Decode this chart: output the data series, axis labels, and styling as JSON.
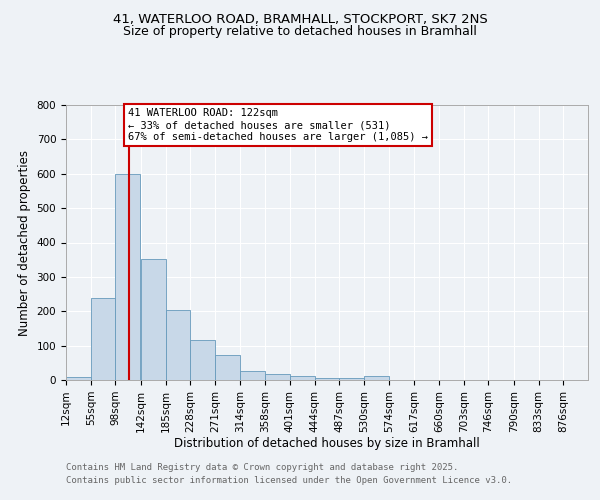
{
  "title_line1": "41, WATERLOO ROAD, BRAMHALL, STOCKPORT, SK7 2NS",
  "title_line2": "Size of property relative to detached houses in Bramhall",
  "xlabel": "Distribution of detached houses by size in Bramhall",
  "ylabel": "Number of detached properties",
  "bin_labels": [
    "12sqm",
    "55sqm",
    "98sqm",
    "142sqm",
    "185sqm",
    "228sqm",
    "271sqm",
    "314sqm",
    "358sqm",
    "401sqm",
    "444sqm",
    "487sqm",
    "530sqm",
    "574sqm",
    "617sqm",
    "660sqm",
    "703sqm",
    "746sqm",
    "790sqm",
    "833sqm",
    "876sqm"
  ],
  "bin_edges": [
    12,
    55,
    98,
    142,
    185,
    228,
    271,
    314,
    358,
    401,
    444,
    487,
    530,
    574,
    617,
    660,
    703,
    746,
    790,
    833,
    876
  ],
  "bar_heights": [
    8,
    238,
    598,
    352,
    205,
    115,
    72,
    27,
    17,
    12,
    5,
    6,
    12,
    0,
    0,
    0,
    0,
    0,
    0,
    0
  ],
  "bar_color": "#c8d8e8",
  "bar_edge_color": "#6699bb",
  "red_line_x": 122,
  "red_line_color": "#cc0000",
  "annotation_text": "41 WATERLOO ROAD: 122sqm\n← 33% of detached houses are smaller (531)\n67% of semi-detached houses are larger (1,085) →",
  "annotation_box_color": "#ffffff",
  "annotation_box_edge": "#cc0000",
  "ylim": [
    0,
    800
  ],
  "yticks": [
    0,
    100,
    200,
    300,
    400,
    500,
    600,
    700,
    800
  ],
  "footer_line1": "Contains HM Land Registry data © Crown copyright and database right 2025.",
  "footer_line2": "Contains public sector information licensed under the Open Government Licence v3.0.",
  "bg_color": "#eef2f6",
  "plot_bg_color": "#eef2f6",
  "grid_color": "#ffffff",
  "title_fontsize": 9.5,
  "axis_label_fontsize": 8.5,
  "tick_fontsize": 7.5,
  "footer_fontsize": 6.5,
  "annotation_fontsize": 7.5
}
